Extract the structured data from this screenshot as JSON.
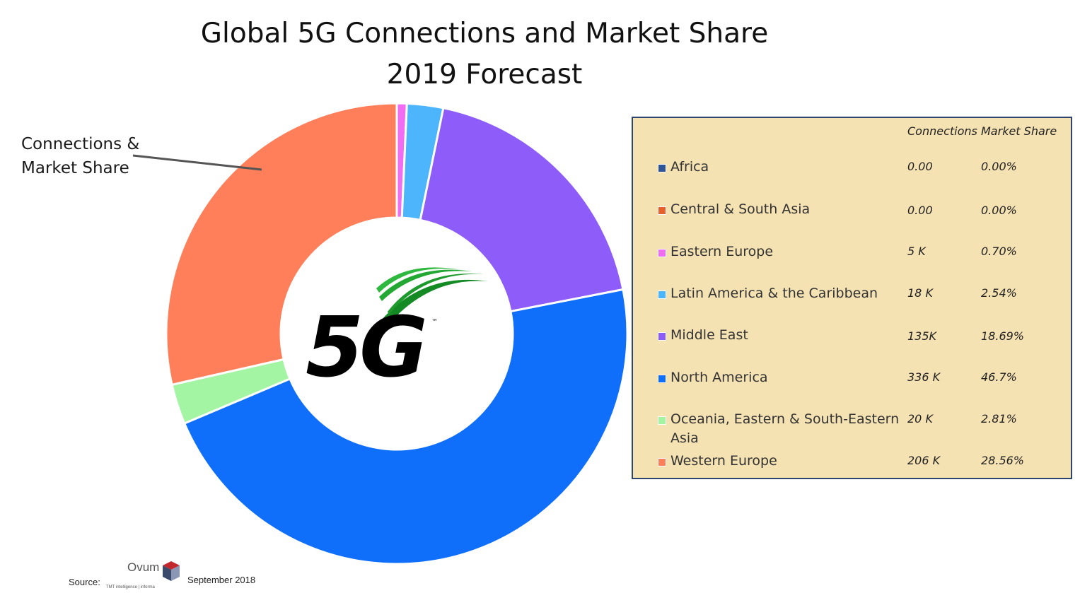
{
  "title_line1": "Global 5G Connections and Market Share",
  "title_line2": "2019 Forecast",
  "callout": {
    "line1": "Connections &",
    "line2": "Market Share"
  },
  "center_logo": {
    "text": "5G",
    "trademark": "™",
    "icon": "5g-logo-icon"
  },
  "legend": {
    "header_connections": "Connections",
    "header_share": "Market Share",
    "rows": [
      {
        "name": "Africa",
        "connections": "0.00",
        "share": "0.00%",
        "color": "#2f5597"
      },
      {
        "name": "Central & South Asia",
        "connections": "0.00",
        "share": "0.00%",
        "color": "#e8612c"
      },
      {
        "name": "Eastern Europe",
        "connections": "5 K",
        "share": "0.70%",
        "color": "#f06cf3"
      },
      {
        "name": "Latin America & the Caribbean",
        "connections": "18 K",
        "share": "2.54%",
        "color": "#4db5fb"
      },
      {
        "name": "Middle East",
        "connections": "135K",
        "share": "18.69%",
        "color": "#8e5cf8"
      },
      {
        "name": "North America",
        "connections": "336 K",
        "share": "46.7%",
        "color": "#0f6ffa"
      },
      {
        "name": "Oceania, Eastern & South-Eastern Asia",
        "connections": "20 K",
        "share": "2.81%",
        "color": "#a3f5a3"
      },
      {
        "name": "Western Europe",
        "connections": "206 K",
        "share": "28.56%",
        "color": "#ff7f5b"
      }
    ]
  },
  "chart_data": {
    "type": "pie",
    "title": "Global 5G Connections and Market Share 2019 Forecast",
    "categories": [
      "Africa",
      "Central & South Asia",
      "Eastern Europe",
      "Latin America & the Caribbean",
      "Middle East",
      "North America",
      "Oceania, Eastern & South-Eastern Asia",
      "Western Europe"
    ],
    "values": [
      0.0,
      0.0,
      0.7,
      2.54,
      18.69,
      46.7,
      2.81,
      28.56
    ],
    "connections": [
      "0.00",
      "0.00",
      "5 K",
      "18 K",
      "135K",
      "336 K",
      "20 K",
      "206 K"
    ],
    "colors": [
      "#2f5597",
      "#e8612c",
      "#f06cf3",
      "#4db5fb",
      "#8e5cf8",
      "#0f6ffa",
      "#a3f5a3",
      "#ff7f5b"
    ],
    "donut": true,
    "legend_position": "right"
  },
  "footer": {
    "source_label": "Source:",
    "brand": "Ovum",
    "brand_tagline": "TMT intelligence | informa",
    "date": "September 2018"
  }
}
